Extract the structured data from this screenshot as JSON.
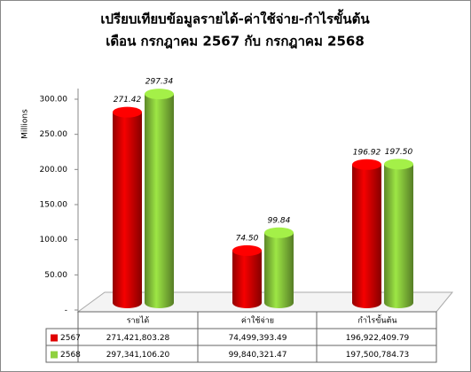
{
  "chart_data": {
    "type": "bar3d",
    "title": "เปรียบเทียบข้อมูลรายได้-ค่าใช้จ่าย-กำไรขั้นต้น",
    "subtitle": "เดือน กรกฎาคม 2567 กับ กรกฎาคม 2568",
    "y_label": "Millions",
    "categories": [
      "รายได้",
      "ค่าใช้จ่าย",
      "กำไรขั้นต้น"
    ],
    "series": [
      {
        "name": "2567",
        "color": "#e00000",
        "values": [
          271.42,
          74.5,
          196.92
        ],
        "value_labels": [
          "271.42",
          "74.50",
          "196.92"
        ],
        "table_values": [
          "271,421,803.28",
          "74,499,393.49",
          "196,922,409.79"
        ]
      },
      {
        "name": "2568",
        "color": "#8fd13f",
        "values": [
          297.34,
          99.84,
          197.5
        ],
        "value_labels": [
          "297.34",
          "99.84",
          "197.50"
        ],
        "table_values": [
          "297,341,106.20",
          "99,840,321.47",
          "197,500,784.73"
        ]
      }
    ],
    "ylim": [
      0,
      300
    ],
    "yticks": [
      {
        "value": 0,
        "label": "-"
      },
      {
        "value": 50,
        "label": "50.00"
      },
      {
        "value": 100,
        "label": "100.00"
      },
      {
        "value": 150,
        "label": "150.00"
      },
      {
        "value": 200,
        "label": "200.00"
      },
      {
        "value": 250,
        "label": "250.00"
      },
      {
        "value": 300,
        "label": "300.00"
      }
    ]
  }
}
